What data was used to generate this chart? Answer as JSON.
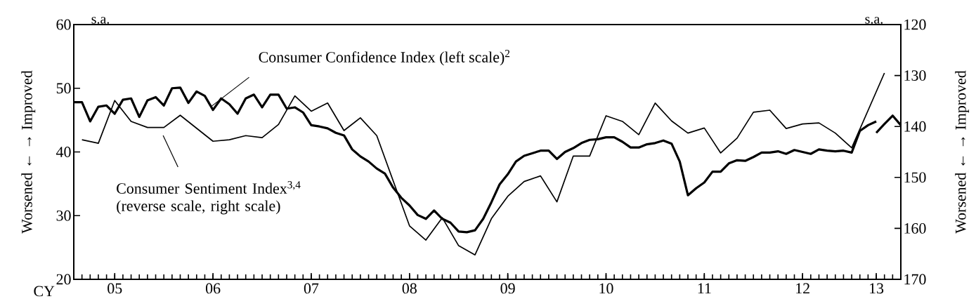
{
  "chart_data": {
    "type": "line",
    "xlabel": "CY",
    "ylabel": "Worsened ← → Improved",
    "y2label": "Worsened ← → Improved",
    "annotations": [
      "s.a.",
      "s.a."
    ],
    "xlim": [
      "2005-01",
      "2013-06"
    ],
    "xticks": [
      {
        "value": "2005-06",
        "label": "05"
      },
      {
        "value": "2006-06",
        "label": "06"
      },
      {
        "value": "2007-06",
        "label": "07"
      },
      {
        "value": "2008-06",
        "label": "08"
      },
      {
        "value": "2009-06",
        "label": "09"
      },
      {
        "value": "2010-06",
        "label": "10"
      },
      {
        "value": "2011-06",
        "label": "11"
      },
      {
        "value": "2012-06",
        "label": "12"
      },
      {
        "value": "2013-03",
        "label": "13"
      }
    ],
    "ylim": [
      20,
      60
    ],
    "yticks": [
      20,
      30,
      40,
      50,
      60
    ],
    "y2lim": [
      170,
      120
    ],
    "y2ticks": [
      120,
      130,
      140,
      150,
      160,
      170
    ],
    "series": [
      {
        "name": "Consumer Confidence Index (left scale)$^{2}$",
        "color": "#000000",
        "axis": "y",
        "x": [
          "2005-01",
          "2005-02",
          "2005-03",
          "2005-04",
          "2005-05",
          "2005-06",
          "2005-07",
          "2005-08",
          "2005-09",
          "2005-10",
          "2005-11",
          "2005-12",
          "2006-01",
          "2006-02",
          "2006-03",
          "2006-04",
          "2006-05",
          "2006-06",
          "2006-07",
          "2006-08",
          "2006-09",
          "2006-10",
          "2006-11",
          "2006-12",
          "2007-01",
          "2007-02",
          "2007-03",
          "2007-04",
          "2007-05",
          "2007-06",
          "2007-07",
          "2007-08",
          "2007-09",
          "2007-10",
          "2007-11",
          "2007-12",
          "2008-01",
          "2008-02",
          "2008-03",
          "2008-04",
          "2008-05",
          "2008-06",
          "2008-07",
          "2008-08",
          "2008-09",
          "2008-10",
          "2008-11",
          "2008-12",
          "2009-01",
          "2009-02",
          "2009-03",
          "2009-04",
          "2009-05",
          "2009-06",
          "2009-07",
          "2009-08",
          "2009-09",
          "2009-10",
          "2009-11",
          "2009-12",
          "2010-01",
          "2010-02",
          "2010-03",
          "2010-04",
          "2010-05",
          "2010-06",
          "2010-07",
          "2010-08",
          "2010-09",
          "2010-10",
          "2010-11",
          "2010-12",
          "2011-01",
          "2011-02",
          "2011-03",
          "2011-04",
          "2011-05",
          "2011-06",
          "2011-07",
          "2011-08",
          "2011-09",
          "2011-10",
          "2011-11",
          "2011-12",
          "2012-01",
          "2012-02",
          "2012-03",
          "2012-04",
          "2012-05",
          "2012-06",
          "2012-07",
          "2012-08",
          "2012-09",
          "2012-10",
          "2012-11",
          "2012-12",
          "2013-01",
          "2013-02",
          "2013-03"
        ],
        "values": [
          47.8,
          47.8,
          44.8,
          47.1,
          47.3,
          46.0,
          48.2,
          48.4,
          45.5,
          48.1,
          48.6,
          47.3,
          50.0,
          50.1,
          47.7,
          49.5,
          48.8,
          46.6,
          48.4,
          47.5,
          46.0,
          48.4,
          49.0,
          47.0,
          49.0,
          49.0,
          46.8,
          47.0,
          46.2,
          44.2,
          44.0,
          43.7,
          43.0,
          42.6,
          40.4,
          39.3,
          38.5,
          37.4,
          36.6,
          34.4,
          32.8,
          31.6,
          30.1,
          29.5,
          30.8,
          29.5,
          28.9,
          27.5,
          27.4,
          27.7,
          29.5,
          32.1,
          34.9,
          36.5,
          38.5,
          39.4,
          39.8,
          40.2,
          40.2,
          38.9,
          40.0,
          40.6,
          41.4,
          41.9,
          42.0,
          42.3,
          42.3,
          41.6,
          40.7,
          40.7,
          41.2,
          41.4,
          41.8,
          41.3,
          38.5,
          33.2,
          34.3,
          35.2,
          36.9,
          36.9,
          38.2,
          38.7,
          38.6,
          39.2,
          39.9,
          39.9,
          40.1,
          39.7,
          40.3,
          40.0,
          39.7,
          40.4,
          40.2,
          40.1,
          40.2,
          39.9,
          43.3,
          44.2,
          44.8
        ]
      },
      {
        "name": "Consumer Sentiment Index$^{3,4}$ (reverse scale, right scale)",
        "color": "#000000",
        "axis": "y2",
        "x": [
          "2005-02",
          "2005-04",
          "2005-06",
          "2005-08",
          "2005-10",
          "2005-12",
          "2006-02",
          "2006-06",
          "2006-08",
          "2006-10",
          "2006-12",
          "2007-02",
          "2007-04",
          "2007-06",
          "2007-08",
          "2007-10",
          "2007-12",
          "2008-02",
          "2008-06",
          "2008-08",
          "2008-10",
          "2008-12",
          "2009-02",
          "2009-04",
          "2009-06",
          "2009-08",
          "2009-10",
          "2009-12",
          "2010-02",
          "2010-04",
          "2010-06",
          "2010-08",
          "2010-10",
          "2010-12",
          "2011-02",
          "2011-04",
          "2011-06",
          "2011-08",
          "2011-10",
          "2011-12",
          "2012-02",
          "2012-04",
          "2012-06",
          "2012-08",
          "2012-10",
          "2012-12",
          "2013-04"
        ],
        "values": [
          142.6,
          143.3,
          134.9,
          139.0,
          140.2,
          140.2,
          137.8,
          142.9,
          142.6,
          141.8,
          142.2,
          139.6,
          134.0,
          137.0,
          135.4,
          140.8,
          138.3,
          141.8,
          159.5,
          162.3,
          157.9,
          163.4,
          165.2,
          158.1,
          153.7,
          150.8,
          149.7,
          154.8,
          145.8,
          145.8,
          137.9,
          139.0,
          141.6,
          135.4,
          138.9,
          141.3,
          140.3,
          145.2,
          142.3,
          137.2,
          136.8,
          140.4,
          139.5,
          139.3,
          141.3,
          144.2,
          129.5
        ]
      },
      {
        "color": "#000000",
        "axis": "y",
        "x": [
          "2013-03",
          "2013-04",
          "2013-05",
          "2013-06"
        ],
        "values": [
          43.0,
          44.4,
          45.7,
          44.2
        ]
      }
    ]
  }
}
